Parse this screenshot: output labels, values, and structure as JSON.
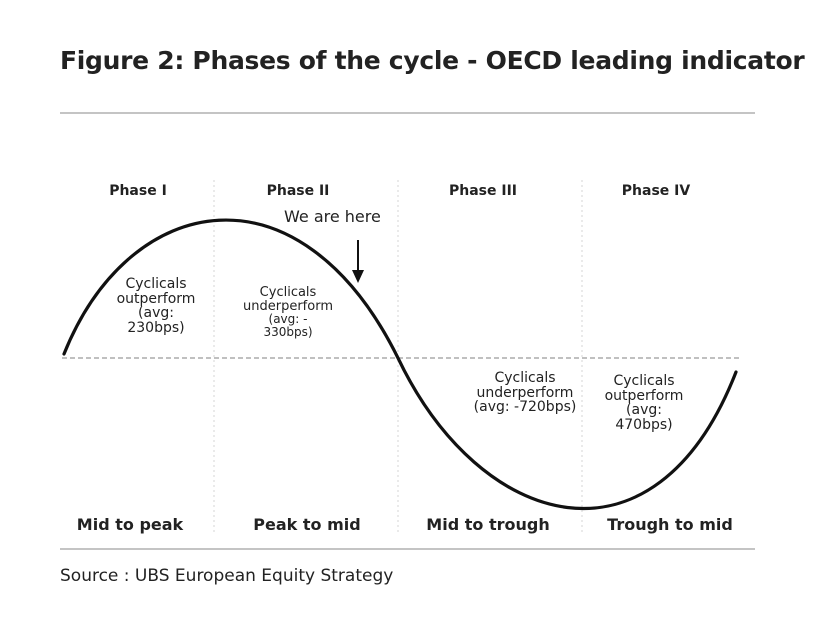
{
  "title": "Figure 2: Phases of the cycle - OECD leading indicator",
  "phases": [
    {
      "label": "Phase I"
    },
    {
      "label": "Phase II"
    },
    {
      "label": "Phase III"
    },
    {
      "label": "Phase IV"
    }
  ],
  "bottom_labels": [
    {
      "label": "Mid to peak"
    },
    {
      "label": "Peak to mid"
    },
    {
      "label": "Mid to trough"
    },
    {
      "label": "Trough to mid"
    }
  ],
  "annotations": [
    {
      "lines": [
        "Cyclicals",
        "outperform",
        "(avg:",
        "230bps)"
      ]
    },
    {
      "lines": [
        "Cyclicals",
        "underperform",
        "(avg: -",
        "330bps)"
      ]
    },
    {
      "lines": [
        "Cyclicals",
        "underperform",
        "(avg: -720bps)"
      ]
    },
    {
      "lines": [
        "Cyclicals",
        "outperform",
        "(avg:",
        "470bps)"
      ]
    }
  ],
  "pointer": {
    "text": "We are here"
  },
  "source": "Source : UBS European Equity Strategy",
  "colors": {
    "curve": "#111111",
    "rule": "#c4c4c4",
    "dash": "#9a9a9a",
    "divider": "#d6d6d6"
  }
}
